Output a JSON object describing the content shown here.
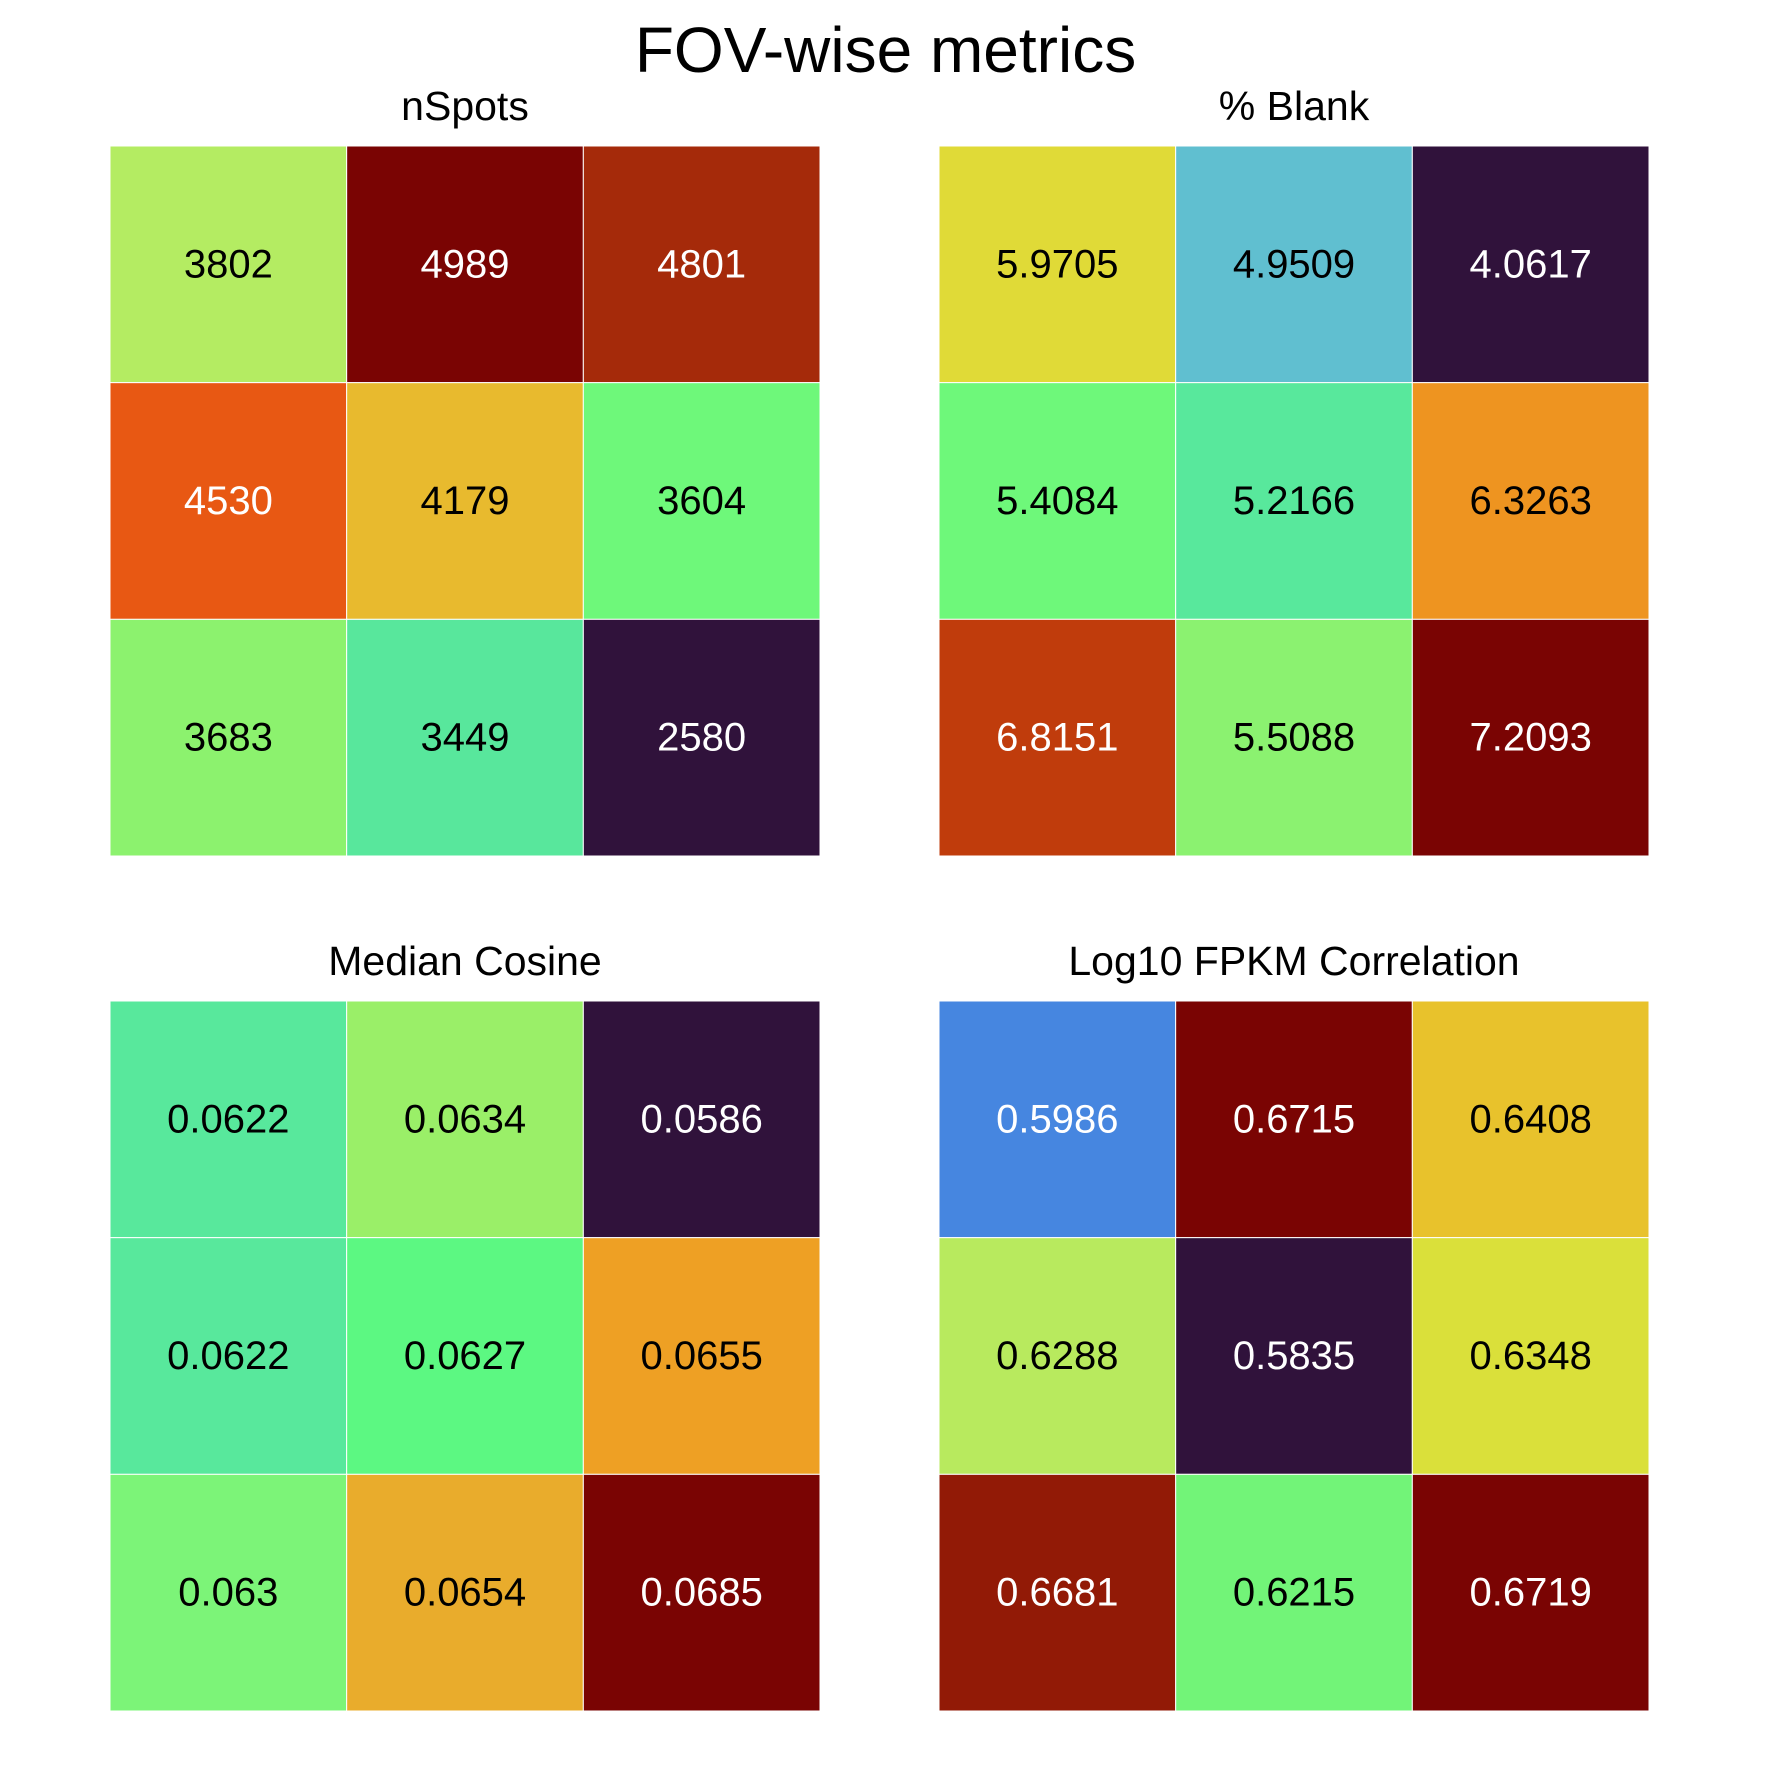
{
  "title": "FOV-wise metrics",
  "chart_data": [
    {
      "type": "heatmap",
      "title": "nSpots",
      "rows": 3,
      "cols": 3,
      "values": [
        [
          3802,
          4989,
          4801
        ],
        [
          4530,
          4179,
          3604
        ],
        [
          3683,
          3449,
          2580
        ]
      ],
      "labels": [
        [
          "3802",
          "4989",
          "4801"
        ],
        [
          "4530",
          "4179",
          "3604"
        ],
        [
          "3683",
          "3449",
          "2580"
        ]
      ],
      "colors": [
        [
          "#b4ec62",
          "#7a0403",
          "#a52a0a"
        ],
        [
          "#e85813",
          "#e8ba2e",
          "#6ef87a"
        ],
        [
          "#8cf26e",
          "#58e79c",
          "#30123b"
        ]
      ],
      "text_colors": [
        [
          "#000000",
          "#ffffff",
          "#ffffff"
        ],
        [
          "#ffffff",
          "#000000",
          "#000000"
        ],
        [
          "#000000",
          "#000000",
          "#ffffff"
        ]
      ]
    },
    {
      "type": "heatmap",
      "title": "% Blank",
      "rows": 3,
      "cols": 3,
      "values": [
        [
          5.9705,
          4.9509,
          4.0617
        ],
        [
          5.4084,
          5.2166,
          6.3263
        ],
        [
          6.8151,
          5.5088,
          7.2093
        ]
      ],
      "labels": [
        [
          "5.9705",
          "4.9509",
          "4.0617"
        ],
        [
          "5.4084",
          "5.2166",
          "6.3263"
        ],
        [
          "6.8151",
          "5.5088",
          "7.2093"
        ]
      ],
      "colors": [
        [
          "#e0da37",
          "#60bfd0",
          "#30123b"
        ],
        [
          "#6ef87a",
          "#58e89c",
          "#ee9420"
        ],
        [
          "#c03c0c",
          "#8bf270",
          "#7a0403"
        ]
      ],
      "text_colors": [
        [
          "#000000",
          "#000000",
          "#ffffff"
        ],
        [
          "#000000",
          "#000000",
          "#000000"
        ],
        [
          "#ffffff",
          "#000000",
          "#ffffff"
        ]
      ]
    },
    {
      "type": "heatmap",
      "title": "Median Cosine",
      "rows": 3,
      "cols": 3,
      "values": [
        [
          0.0622,
          0.0634,
          0.0586
        ],
        [
          0.0622,
          0.0627,
          0.0655
        ],
        [
          0.063,
          0.0654,
          0.0685
        ]
      ],
      "labels": [
        [
          "0.0622",
          "0.0634",
          "0.0586"
        ],
        [
          "0.0622",
          "0.0627",
          "0.0655"
        ],
        [
          "0.063",
          "0.0654",
          "0.0685"
        ]
      ],
      "colors": [
        [
          "#58e89c",
          "#9aef68",
          "#30123b"
        ],
        [
          "#58e89c",
          "#5cf882",
          "#eea024"
        ],
        [
          "#7cf478",
          "#e9ac2c",
          "#7a0403"
        ]
      ],
      "text_colors": [
        [
          "#000000",
          "#000000",
          "#ffffff"
        ],
        [
          "#000000",
          "#000000",
          "#000000"
        ],
        [
          "#000000",
          "#000000",
          "#ffffff"
        ]
      ]
    },
    {
      "type": "heatmap",
      "title": "Log10 FPKM Correlation",
      "rows": 3,
      "cols": 3,
      "values": [
        [
          0.5986,
          0.6715,
          0.6408
        ],
        [
          0.6288,
          0.5835,
          0.6348
        ],
        [
          0.6681,
          0.6215,
          0.6719
        ]
      ],
      "labels": [
        [
          "0.5986",
          "0.6715",
          "0.6408"
        ],
        [
          "0.6288",
          "0.5835",
          "0.6348"
        ],
        [
          "0.6681",
          "0.6215",
          "0.6719"
        ]
      ],
      "colors": [
        [
          "#4686e0",
          "#7a0403",
          "#e8c22c"
        ],
        [
          "#b8ea5e",
          "#30123b",
          "#dae03a"
        ],
        [
          "#921a06",
          "#72f478",
          "#7a0403"
        ]
      ],
      "text_colors": [
        [
          "#ffffff",
          "#ffffff",
          "#000000"
        ],
        [
          "#000000",
          "#ffffff",
          "#000000"
        ],
        [
          "#ffffff",
          "#000000",
          "#ffffff"
        ]
      ]
    }
  ]
}
